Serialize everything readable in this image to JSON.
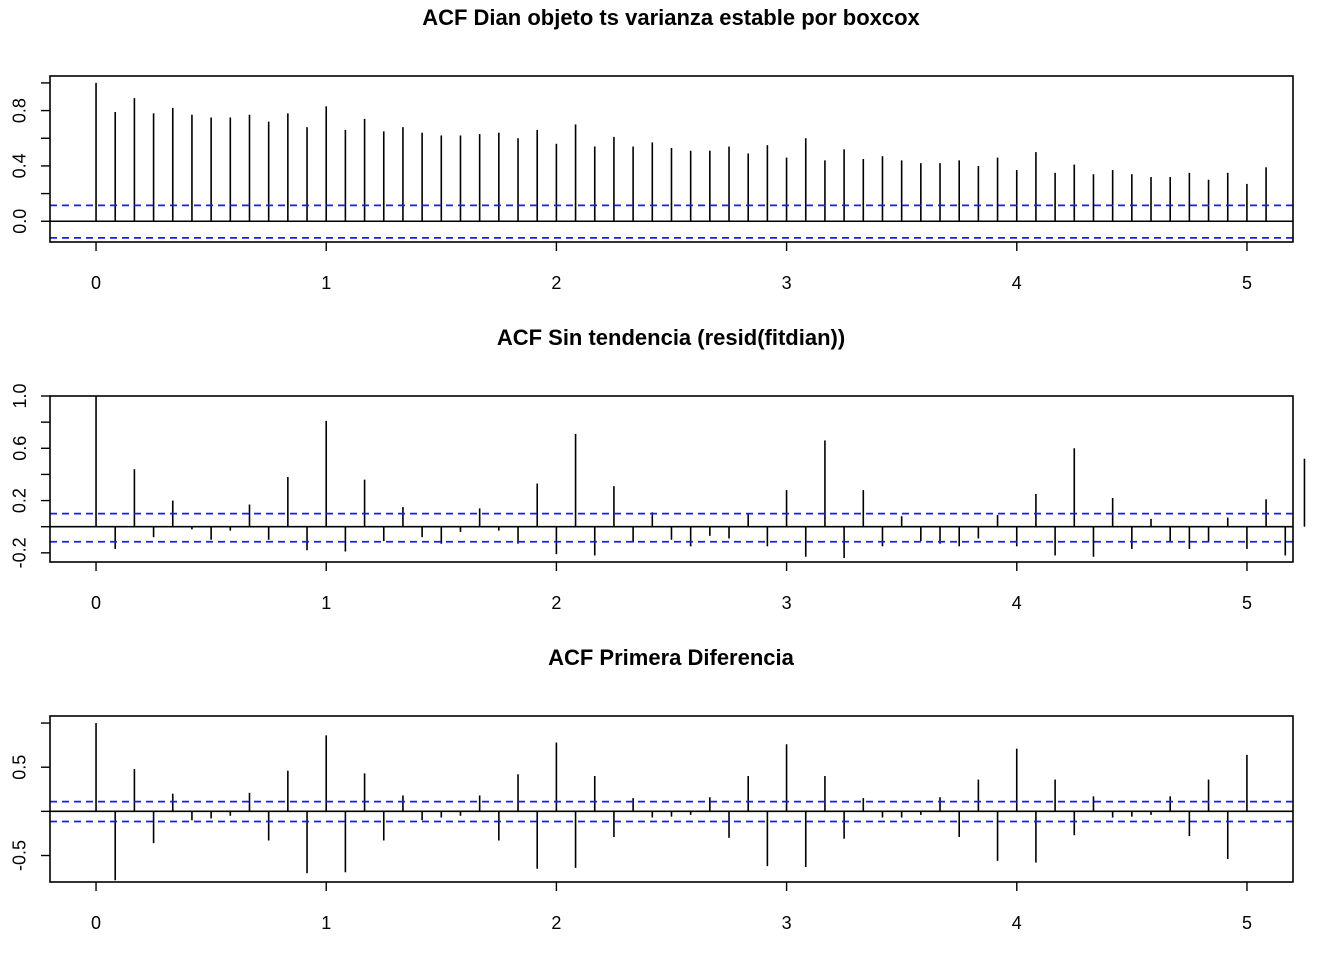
{
  "chart_data": [
    {
      "type": "bar",
      "title": "ACF Dian objeto ts varianza estable por boxcox",
      "xlabel": "",
      "ylabel": "",
      "xlim": [
        -0.2,
        5.2
      ],
      "ylim": [
        -0.15,
        1.05
      ],
      "xticks": [
        0,
        1,
        2,
        3,
        4,
        5
      ],
      "xtick_labels": [
        "0",
        "1",
        "2",
        "3",
        "4",
        "5"
      ],
      "yticks": [
        0.0,
        0.4,
        0.8
      ],
      "ytick_labels": [
        "0.0",
        "0.4",
        "0.8"
      ],
      "minor_yticks": [
        0.2,
        0.6,
        1.0
      ],
      "ci": [
        0.115,
        -0.12
      ],
      "lag_step": 0.08333,
      "values": [
        1.0,
        0.79,
        0.89,
        0.78,
        0.82,
        0.77,
        0.75,
        0.75,
        0.77,
        0.72,
        0.78,
        0.68,
        0.83,
        0.66,
        0.74,
        0.65,
        0.68,
        0.64,
        0.62,
        0.62,
        0.63,
        0.64,
        0.6,
        0.66,
        0.56,
        0.7,
        0.54,
        0.61,
        0.54,
        0.57,
        0.53,
        0.51,
        0.51,
        0.54,
        0.49,
        0.55,
        0.46,
        0.6,
        0.44,
        0.52,
        0.45,
        0.47,
        0.44,
        0.42,
        0.42,
        0.44,
        0.4,
        0.46,
        0.37,
        0.5,
        0.35,
        0.41,
        0.34,
        0.37,
        0.34,
        0.32,
        0.32,
        0.35,
        0.3,
        0.35,
        0.27,
        0.39
      ]
    },
    {
      "type": "bar",
      "title": "ACF Sin tendencia (resid(fitdian))",
      "xlabel": "",
      "ylabel": "",
      "xlim": [
        -0.2,
        5.2
      ],
      "ylim": [
        -0.27,
        1.0
      ],
      "xticks": [
        0,
        1,
        2,
        3,
        4,
        5
      ],
      "xtick_labels": [
        "0",
        "1",
        "2",
        "3",
        "4",
        "5"
      ],
      "yticks": [
        -0.2,
        0.2,
        0.6,
        1.0
      ],
      "ytick_labels": [
        "-0.2",
        "0.2",
        "0.6",
        "1.0"
      ],
      "minor_yticks": [
        0.0,
        0.4,
        0.8
      ],
      "ci": [
        0.1,
        -0.115
      ],
      "lag_step": 0.08333,
      "values": [
        1.0,
        -0.17,
        0.44,
        -0.08,
        0.2,
        -0.02,
        -0.1,
        -0.03,
        0.17,
        -0.1,
        0.38,
        -0.18,
        0.81,
        -0.19,
        0.36,
        -0.11,
        0.15,
        -0.08,
        -0.13,
        -0.04,
        0.14,
        -0.03,
        -0.13,
        0.33,
        -0.21,
        0.71,
        -0.22,
        0.31,
        -0.12,
        0.11,
        -0.1,
        -0.15,
        -0.07,
        -0.09,
        0.1,
        -0.15,
        0.28,
        -0.23,
        0.66,
        -0.24,
        0.28,
        -0.15,
        0.08,
        -0.11,
        -0.13,
        -0.15,
        -0.09,
        0.09,
        -0.15,
        0.25,
        -0.22,
        0.6,
        -0.23,
        0.22,
        -0.17,
        0.06,
        -0.11,
        -0.17,
        -0.12,
        0.07,
        -0.17,
        0.21,
        -0.22,
        0.52
      ]
    },
    {
      "type": "bar",
      "title": "ACF Primera Diferencia",
      "xlabel": "",
      "ylabel": "",
      "xlim": [
        -0.2,
        5.2
      ],
      "ylim": [
        -0.8,
        1.08
      ],
      "xticks": [
        0,
        1,
        2,
        3,
        4,
        5
      ],
      "xtick_labels": [
        "0",
        "1",
        "2",
        "3",
        "4",
        "5"
      ],
      "yticks": [
        -0.5,
        0.5
      ],
      "ytick_labels": [
        "-0.5",
        "0.5"
      ],
      "minor_yticks": [
        0.0,
        1.0
      ],
      "ci": [
        0.11,
        -0.115
      ],
      "lag_step": 0.08333,
      "values": [
        1.0,
        -0.78,
        0.48,
        -0.36,
        0.2,
        -0.1,
        -0.08,
        -0.05,
        0.21,
        -0.33,
        0.46,
        -0.7,
        0.86,
        -0.69,
        0.43,
        -0.33,
        0.18,
        -0.1,
        -0.07,
        -0.05,
        0.18,
        -0.33,
        0.42,
        -0.65,
        0.78,
        -0.64,
        0.4,
        -0.29,
        0.15,
        -0.07,
        -0.06,
        -0.04,
        0.16,
        -0.3,
        0.4,
        -0.62,
        0.76,
        -0.63,
        0.4,
        -0.31,
        0.15,
        -0.07,
        -0.07,
        -0.04,
        0.16,
        -0.29,
        0.36,
        -0.56,
        0.71,
        -0.58,
        0.36,
        -0.27,
        0.17,
        -0.07,
        -0.06,
        -0.04,
        0.17,
        -0.28,
        0.36,
        -0.54,
        0.64
      ]
    }
  ]
}
